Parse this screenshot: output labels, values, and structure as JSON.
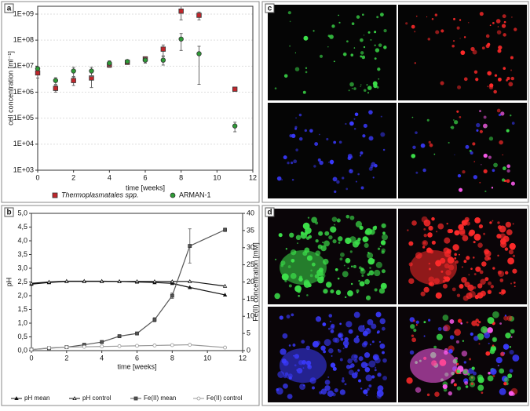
{
  "chart_data": [
    {
      "type": "scatter",
      "label": "a",
      "xlabel": "time [weeks]",
      "ylabel": "cell concentration [ml⁻¹]",
      "log_y": true,
      "grid": true,
      "xlim": [
        0,
        12
      ],
      "xticks": [
        0,
        2,
        4,
        6,
        8,
        10,
        12
      ],
      "ylim": [
        1000,
        2000000000
      ],
      "yticks": [
        {
          "value": 1000,
          "label": "1E+03"
        },
        {
          "value": 10000,
          "label": "1E+04"
        },
        {
          "value": 100000,
          "label": "1E+05"
        },
        {
          "value": 1000000,
          "label": "1E+06"
        },
        {
          "value": 10000000,
          "label": "1E+07"
        },
        {
          "value": 100000000,
          "label": "1E+08"
        },
        {
          "value": 1000000000,
          "label": "1E+09"
        }
      ],
      "x": [
        0,
        1,
        2,
        3,
        4,
        5,
        6,
        7,
        8,
        9,
        11
      ],
      "series": [
        {
          "name": "Thermoplasmatales spp.",
          "color": "#c0262b",
          "marker": "square",
          "values": [
            5500000,
            1400000,
            2800000,
            3500000,
            11000000,
            14000000,
            19000000,
            45000000,
            1300000000,
            900000000,
            1300000
          ],
          "errors": [
            2000000,
            400000,
            1000000,
            2000000,
            2000000,
            2000000,
            3000000,
            20000000,
            700000000,
            300000000,
            100000
          ]
        },
        {
          "name": "ARMAN-1",
          "color": "#2e9a36",
          "marker": "circle",
          "values": [
            8000000,
            2800000,
            6500000,
            6500000,
            13000000,
            15000000,
            17000000,
            17000000,
            110000000,
            30000000,
            50000
          ],
          "errors": [
            1000000,
            800000,
            2500000,
            2500000,
            3000000,
            2000000,
            4000000,
            6000000,
            70000000,
            28000000,
            20000
          ]
        }
      ]
    },
    {
      "type": "line",
      "label": "b",
      "xlabel": "time [weeks]",
      "ylabel": "pH",
      "y2label": "Fe(II) concentration [mM]",
      "xlim": [
        0,
        12
      ],
      "xticks": [
        0,
        2,
        4,
        6,
        8,
        10,
        12
      ],
      "ylim": [
        0,
        5
      ],
      "yticks": [
        {
          "value": 0,
          "label": "0,0"
        },
        {
          "value": 0.5,
          "label": "0,5"
        },
        {
          "value": 1,
          "label": "1,0"
        },
        {
          "value": 1.5,
          "label": "1,5"
        },
        {
          "value": 2,
          "label": "2,0"
        },
        {
          "value": 2.5,
          "label": "2,5"
        },
        {
          "value": 3,
          "label": "3,0"
        },
        {
          "value": 3.5,
          "label": "3,5"
        },
        {
          "value": 4,
          "label": "4,0"
        },
        {
          "value": 4.5,
          "label": "4,5"
        },
        {
          "value": 5,
          "label": "5,0"
        }
      ],
      "y2lim": [
        0,
        40
      ],
      "y2ticks": [
        0,
        5,
        10,
        15,
        20,
        25,
        30,
        35,
        40
      ],
      "x": [
        0,
        1,
        2,
        3,
        4,
        5,
        6,
        7,
        8,
        9,
        11
      ],
      "series": [
        {
          "name": "pH mean",
          "color": "#111111",
          "marker": "triangle-filled",
          "values": [
            2.42,
            2.48,
            2.52,
            2.52,
            2.52,
            2.52,
            2.5,
            2.48,
            2.45,
            2.3,
            2.03
          ]
        },
        {
          "name": "pH control",
          "color": "#111111",
          "marker": "triangle-open",
          "values": [
            2.45,
            2.5,
            2.53,
            2.53,
            2.53,
            2.52,
            2.52,
            2.52,
            2.52,
            2.52,
            2.35
          ]
        },
        {
          "name": "Fe(II) mean",
          "color": "#555555",
          "marker": "square-filled",
          "axis": "y2",
          "values": [
            0.3,
            0.7,
            1.0,
            1.7,
            2.5,
            4.2,
            5.0,
            9.0,
            16,
            30.5,
            35.2
          ],
          "errors": [
            0.1,
            0.1,
            0.1,
            0.2,
            0.2,
            0.3,
            0.3,
            0.6,
            0.8,
            5,
            0.5
          ]
        },
        {
          "name": "Fe(II) control",
          "color": "#999999",
          "marker": "circle-open",
          "axis": "y2",
          "values": [
            0.3,
            0.8,
            1.0,
            1.1,
            1.2,
            1.3,
            1.4,
            1.5,
            1.6,
            1.7,
            0.9
          ]
        }
      ]
    }
  ],
  "images": [
    {
      "label": "c"
    },
    {
      "label": "d"
    }
  ]
}
